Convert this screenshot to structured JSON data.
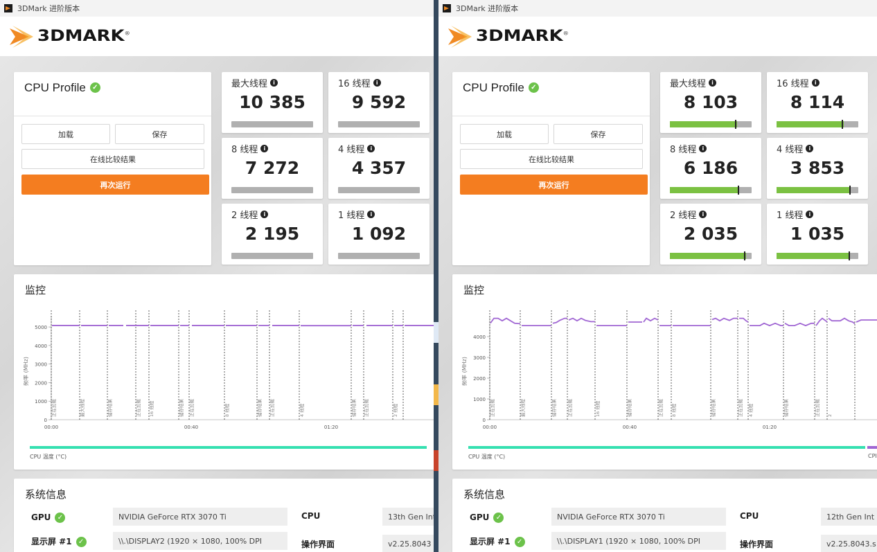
{
  "app_title": "3DMark 进阶版本",
  "logo_text": "3DMARK",
  "logo_reg": "®",
  "windows": [
    {
      "profile_title": "CPU Profile",
      "btn_load": "加载",
      "btn_save": "保存",
      "btn_compare": "在线比较结果",
      "btn_run": "再次运行",
      "scores": [
        {
          "label": "最大线程",
          "value": "10 385",
          "fill": null,
          "marker": null
        },
        {
          "label": "16 线程",
          "value": "9 592",
          "fill": null,
          "marker": null
        },
        {
          "label": "8 线程",
          "value": "7 272",
          "fill": null,
          "marker": null
        },
        {
          "label": "4 线程",
          "value": "4 357",
          "fill": null,
          "marker": null
        },
        {
          "label": "2 线程",
          "value": "2 195",
          "fill": null,
          "marker": null
        },
        {
          "label": "1 线程",
          "value": "1 092",
          "fill": null,
          "marker": null
        }
      ],
      "monitor_title": "监控",
      "chart": {
        "ylabel": "频率 (MHz)",
        "yticks": [
          "0",
          "1000",
          "2000",
          "3000",
          "4000",
          "5000"
        ],
        "xticks": [
          "00:00",
          "00:40",
          "01:20"
        ],
        "phases": [
          "正在加载",
          "最大线程",
          "储存结果",
          "正在加载",
          "16 线程",
          "储存结果",
          "正在加载",
          "8 线程",
          "储存结果",
          "正在加载",
          "4 线程",
          "储存结果",
          "正在加载",
          "2 线程"
        ]
      },
      "temp_label": "CPU 温度 (°C)",
      "sysinfo_title": "系统信息",
      "gpu_label": "GPU",
      "gpu_value": "NVIDIA GeForce RTX 3070 Ti",
      "cpu_label": "CPU",
      "cpu_value": "13th Gen Int",
      "display_label": "显示屏 #1",
      "display_value": "\\\\.\\DISPLAY2 (1920 × 1080, 100% DPI",
      "os_label": "操作界面",
      "os_value": "v2.25.8043"
    },
    {
      "profile_title": "CPU Profile",
      "btn_load": "加载",
      "btn_save": "保存",
      "btn_compare": "在线比较结果",
      "btn_run": "再次运行",
      "scores": [
        {
          "label": "最大线程",
          "value": "8 103",
          "fill": 0.82,
          "marker": 0.8
        },
        {
          "label": "16 线程",
          "value": "8 114",
          "fill": 0.82,
          "marker": 0.8
        },
        {
          "label": "8 线程",
          "value": "6 186",
          "fill": 0.85,
          "marker": 0.83
        },
        {
          "label": "4 线程",
          "value": "3 853",
          "fill": 0.91,
          "marker": 0.89
        },
        {
          "label": "2 线程",
          "value": "2 035",
          "fill": 0.93,
          "marker": 0.91
        },
        {
          "label": "1 线程",
          "value": "1 035",
          "fill": 0.9,
          "marker": 0.88
        }
      ],
      "monitor_title": "监控",
      "chart": {
        "ylabel": "频率 (MHz)",
        "yticks": [
          "0",
          "1000",
          "2000",
          "3000",
          "4000"
        ],
        "xticks": [
          "00:00",
          "00:40",
          "01:20"
        ],
        "phases": [
          "正在加载",
          "最大线程",
          "储存结果",
          "正在加载",
          "16 线程",
          "储存结果",
          "正在加载",
          "8 线程",
          "储存结果",
          "正在加载",
          "4 线程",
          "储存结果",
          "正在加载",
          "2"
        ]
      },
      "temp_label": "CPU 温度 (°C)",
      "temp_label_right": "CPI",
      "sysinfo_title": "系统信息",
      "gpu_label": "GPU",
      "gpu_value": "NVIDIA GeForce RTX 3070 Ti",
      "cpu_label": "CPU",
      "cpu_value": "12th Gen Int",
      "display_label": "显示屏 #1",
      "display_value": "\\\\.\\DISPLAY1 (1920 × 1080, 100% DPI",
      "os_label": "操作界面",
      "os_value": "v2.25.8043.s"
    }
  ],
  "colors": {
    "accent": "#f47d20",
    "score_bar_gray": "#b0b0b0",
    "score_bar_green": "#7bc142",
    "freq_line": "#a066d3",
    "temp_line": "#35e0b0"
  }
}
